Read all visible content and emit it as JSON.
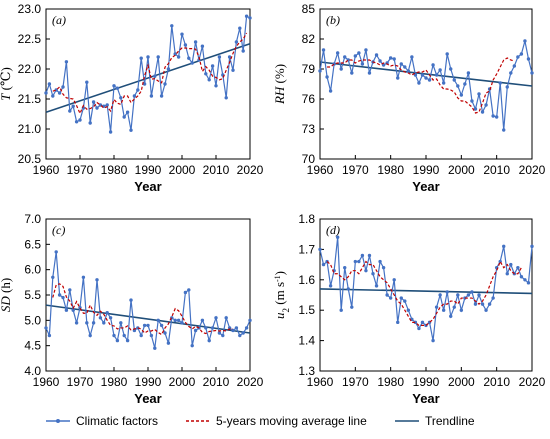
{
  "legend": {
    "items": [
      {
        "label": "Climatic factors",
        "color": "#4472C4",
        "style": "line-marker"
      },
      {
        "label": "5-years moving average line",
        "color": "#C00000",
        "style": "dashed"
      },
      {
        "label": "Trendline",
        "color": "#1F4E79",
        "style": "solid"
      }
    ]
  },
  "chart_data": [
    {
      "type": "line",
      "panel": "(a)",
      "xlabel": "Year",
      "ylabel": "T (℃)",
      "xlim": [
        1960,
        2020
      ],
      "ylim": [
        20.5,
        23.0
      ],
      "xticks": [
        1960,
        1970,
        1980,
        1990,
        2000,
        2010,
        2020
      ],
      "yticks": [
        20.5,
        21.0,
        21.5,
        22.0,
        22.5,
        23.0
      ],
      "ytick_labels": [
        "20.5",
        "21.0",
        "21.5",
        "22.0",
        "22.5",
        "23.0"
      ],
      "x_start": 1960,
      "x_step": 1,
      "values": [
        21.6,
        21.75,
        21.55,
        21.65,
        21.6,
        21.7,
        22.12,
        21.3,
        21.38,
        21.12,
        21.15,
        21.35,
        21.78,
        21.1,
        21.45,
        21.35,
        21.4,
        21.38,
        21.4,
        20.95,
        21.72,
        21.68,
        21.52,
        21.2,
        21.28,
        20.98,
        21.55,
        21.65,
        22.18,
        21.75,
        22.2,
        21.55,
        21.88,
        22.2,
        21.55,
        21.75,
        22.0,
        22.72,
        22.25,
        22.2,
        22.58,
        22.4,
        22.18,
        22.1,
        22.45,
        22.15,
        22.38,
        21.92,
        21.82,
        22.05,
        21.72,
        22.2,
        21.9,
        21.52,
        22.2,
        21.98,
        22.45,
        22.68,
        22.3,
        22.88,
        22.85
      ],
      "moving_average": [
        21.63,
        21.65,
        21.7,
        21.58,
        21.52,
        21.51,
        21.5,
        21.39,
        21.26,
        21.39,
        21.33,
        21.34,
        21.37,
        21.44,
        21.4,
        21.35,
        21.37,
        21.3,
        21.49,
        21.43,
        21.41,
        21.55,
        21.55,
        21.44,
        21.5,
        21.55,
        21.63,
        21.89,
        22.06,
        21.83,
        21.84,
        21.8,
        21.77,
        22.03,
        22.09,
        22.19,
        22.23,
        22.3,
        22.35,
        22.35,
        22.34,
        22.34,
        22.33,
        22.2,
        21.96,
        22.04,
        21.98,
        21.88,
        21.86,
        21.82,
        21.84,
        21.98,
        22.11,
        22.26,
        22.38,
        22.45,
        22.5,
        22.6
      ],
      "ma_x_start": 1962,
      "trendline": {
        "x": [
          1960,
          2020
        ],
        "y": [
          21.28,
          22.42
        ]
      }
    },
    {
      "type": "line",
      "panel": "(b)",
      "xlabel": "Year",
      "ylabel": "RH (%)",
      "xlim": [
        1960,
        2020
      ],
      "ylim": [
        70,
        85
      ],
      "xticks": [
        1960,
        1970,
        1980,
        1990,
        2000,
        2010,
        2020
      ],
      "yticks": [
        70,
        73,
        76,
        79,
        82,
        85
      ],
      "ytick_labels": [
        "70",
        "73",
        "76",
        "79",
        "82",
        "85"
      ],
      "x_start": 1960,
      "x_step": 1,
      "values": [
        78.8,
        80.9,
        78.2,
        76.8,
        79.5,
        80.6,
        79.0,
        80.2,
        79.9,
        78.6,
        80.3,
        80.6,
        79.5,
        80.9,
        78.6,
        79.7,
        80.4,
        79.8,
        79.4,
        79.6,
        80.1,
        80.0,
        78.1,
        79.5,
        79.2,
        78.8,
        80.2,
        78.4,
        77.6,
        78.4,
        78.1,
        77.9,
        79.4,
        78.4,
        78.9,
        77.6,
        80.5,
        79.0,
        77.9,
        77.3,
        76.4,
        77.5,
        78.6,
        75.8,
        75.0,
        76.5,
        74.7,
        75.4,
        77.0,
        74.3,
        74.2,
        77.6,
        72.9,
        77.2,
        78.6,
        79.3,
        80.2,
        80.5,
        81.8,
        80.0,
        78.6
      ],
      "moving_average": [
        79.2,
        79.2,
        79.5,
        79.6,
        79.6,
        79.6,
        79.9,
        79.9,
        79.6,
        79.8,
        79.9,
        79.9,
        79.9,
        79.7,
        79.6,
        79.4,
        79.6,
        79.5,
        79.3,
        79.4,
        79.3,
        78.9,
        78.7,
        78.6,
        78.4,
        78.6,
        78.7,
        78.7,
        78.9,
        78.4,
        77.9,
        78.0,
        77.4,
        77.0,
        77.0,
        76.9,
        76.7,
        76.1,
        75.8,
        75.8,
        75.5,
        75.2,
        74.6,
        74.7,
        75.6,
        76.6,
        76.8,
        77.9,
        78.5,
        79.2,
        79.9,
        80.1,
        79.9,
        79.8
      ],
      "ma_x_start": 1962,
      "trendline": {
        "x": [
          1960,
          2020
        ],
        "y": [
          79.7,
          77.3
        ]
      }
    },
    {
      "type": "line",
      "panel": "(c)",
      "xlabel": "Year",
      "ylabel": "SD (h)",
      "xlim": [
        1960,
        2020
      ],
      "ylim": [
        4.0,
        7.0
      ],
      "xticks": [
        1960,
        1970,
        1980,
        1990,
        2000,
        2010,
        2020
      ],
      "yticks": [
        4.0,
        4.5,
        5.0,
        5.5,
        6.0,
        6.5,
        7.0
      ],
      "ytick_labels": [
        "4.0",
        "4.5",
        "5.0",
        "5.5",
        "6.0",
        "6.5",
        "7.0"
      ],
      "x_start": 1960,
      "x_step": 1,
      "values": [
        4.85,
        4.7,
        5.85,
        6.35,
        5.5,
        5.45,
        5.2,
        5.6,
        5.2,
        4.95,
        5.25,
        5.85,
        4.95,
        4.7,
        4.95,
        5.8,
        5.05,
        4.95,
        5.15,
        5.05,
        4.7,
        4.6,
        4.95,
        4.7,
        4.6,
        5.4,
        4.8,
        4.85,
        4.7,
        4.9,
        4.9,
        4.7,
        4.45,
        5.0,
        4.9,
        4.75,
        4.55,
        5.05,
        5.0,
        5.0,
        4.95,
        5.55,
        5.6,
        4.5,
        4.8,
        4.85,
        5.0,
        4.85,
        4.6,
        4.85,
        5.05,
        4.75,
        4.7,
        5.05,
        4.85,
        4.8,
        4.85,
        4.7,
        4.75,
        4.85,
        5.0
      ],
      "moving_average": [
        5.45,
        5.7,
        5.72,
        5.67,
        5.46,
        5.38,
        5.24,
        5.37,
        5.24,
        5.14,
        5.14,
        5.3,
        5.16,
        5.1,
        5.18,
        5.12,
        5.0,
        4.9,
        4.89,
        4.83,
        4.85,
        4.85,
        4.89,
        4.81,
        4.83,
        4.85,
        4.83,
        4.75,
        4.79,
        4.79,
        4.82,
        4.76,
        4.72,
        4.85,
        4.93,
        5.07,
        5.23,
        5.19,
        5.08,
        4.96,
        4.88,
        4.83,
        4.88,
        4.85,
        4.76,
        4.74,
        4.78,
        4.79,
        4.8,
        4.79,
        4.8,
        4.79,
        4.83,
        4.83
      ],
      "ma_x_start": 1962,
      "trendline": {
        "x": [
          1960,
          2020
        ],
        "y": [
          5.3,
          4.75
        ]
      }
    },
    {
      "type": "line",
      "panel": "(d)",
      "xlabel": "Year",
      "ylabel": "u2 (m s-1)",
      "xlim": [
        1960,
        2020
      ],
      "ylim": [
        1.3,
        1.8
      ],
      "xticks": [
        1960,
        1970,
        1980,
        1990,
        2000,
        2010,
        2020
      ],
      "yticks": [
        1.3,
        1.4,
        1.5,
        1.6,
        1.7,
        1.8
      ],
      "ytick_labels": [
        "1.3",
        "1.4",
        "1.5",
        "1.6",
        "1.7",
        "1.8"
      ],
      "x_start": 1960,
      "x_step": 1,
      "values": [
        1.7,
        1.65,
        1.66,
        1.58,
        1.63,
        1.74,
        1.5,
        1.64,
        1.57,
        1.51,
        1.66,
        1.66,
        1.68,
        1.63,
        1.68,
        1.62,
        1.58,
        1.66,
        1.64,
        1.55,
        1.54,
        1.6,
        1.46,
        1.54,
        1.53,
        1.5,
        1.47,
        1.46,
        1.44,
        1.46,
        1.45,
        1.46,
        1.4,
        1.51,
        1.55,
        1.5,
        1.56,
        1.48,
        1.51,
        1.55,
        1.5,
        1.54,
        1.55,
        1.56,
        1.52,
        1.55,
        1.52,
        1.5,
        1.52,
        1.54,
        1.64,
        1.66,
        1.71,
        1.62,
        1.65,
        1.62,
        1.64,
        1.61,
        1.6,
        1.59,
        1.71
      ],
      "moving_average": [
        1.66,
        1.65,
        1.62,
        1.62,
        1.61,
        1.6,
        1.61,
        1.63,
        1.63,
        1.62,
        1.64,
        1.66,
        1.65,
        1.65,
        1.63,
        1.61,
        1.6,
        1.59,
        1.57,
        1.55,
        1.53,
        1.52,
        1.5,
        1.48,
        1.46,
        1.46,
        1.45,
        1.45,
        1.45,
        1.46,
        1.47,
        1.49,
        1.51,
        1.52,
        1.52,
        1.53,
        1.53,
        1.52,
        1.54,
        1.54,
        1.54,
        1.54,
        1.53,
        1.52,
        1.53,
        1.55,
        1.58,
        1.61,
        1.63,
        1.66,
        1.64,
        1.65,
        1.63,
        1.62,
        1.62,
        1.64
      ],
      "ma_x_start": 1962,
      "trendline": {
        "x": [
          1960,
          2020
        ],
        "y": [
          1.57,
          1.555
        ]
      }
    }
  ]
}
